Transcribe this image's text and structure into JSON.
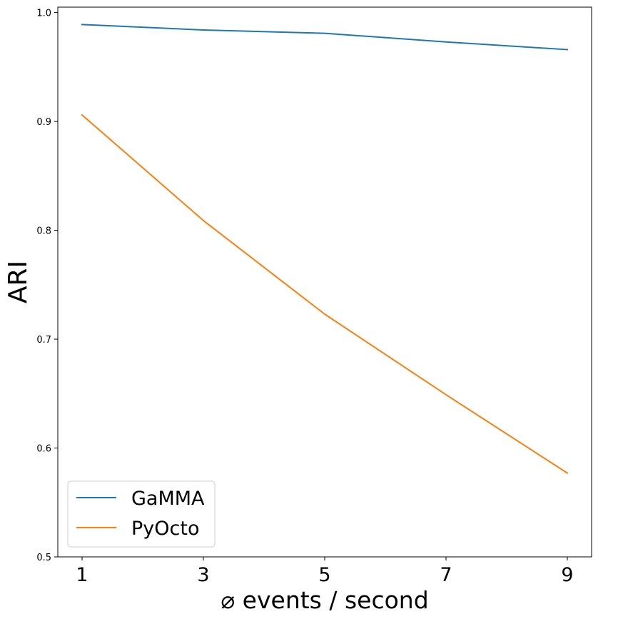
{
  "chart_data": {
    "type": "line",
    "title": "",
    "xlabel": "⌀ events / second",
    "ylabel": "ARI",
    "x": [
      1,
      3,
      5,
      7,
      9
    ],
    "xticks": [
      "1",
      "3",
      "5",
      "7",
      "9"
    ],
    "xlim": [
      0.6,
      9.4
    ],
    "ylim": [
      0.5,
      1.005
    ],
    "yticks": [
      "0.5",
      "0.6",
      "0.7",
      "0.8",
      "0.9",
      "1.0"
    ],
    "grid": false,
    "legend_position": "lower-left",
    "series": [
      {
        "name": "GaMMA",
        "color": "#1f77b4",
        "values": [
          0.989,
          0.984,
          0.981,
          0.973,
          0.966
        ]
      },
      {
        "name": "PyOcto",
        "color": "#ff7f0e",
        "values": [
          0.906,
          0.809,
          0.723,
          0.649,
          0.577
        ]
      }
    ]
  }
}
